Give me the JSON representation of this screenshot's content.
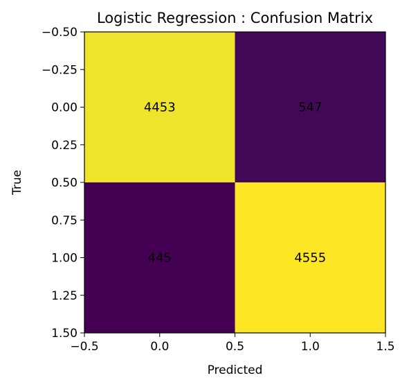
{
  "chart_data": {
    "type": "heatmap",
    "title": "Logistic Regression : Confusion Matrix",
    "xlabel": "Predicted",
    "ylabel": "True",
    "matrix": [
      [
        4453,
        547
      ],
      [
        445,
        4555
      ]
    ],
    "cell_labels": [
      [
        "4453",
        "547"
      ],
      [
        "445",
        "4555"
      ]
    ],
    "xlim": [
      -0.5,
      1.5
    ],
    "ylim": [
      1.5,
      -0.5
    ],
    "xticks": [
      -0.5,
      0.0,
      0.5,
      1.0,
      1.5
    ],
    "xtick_labels": [
      "−0.5",
      "0.0",
      "0.5",
      "1.0",
      "1.5"
    ],
    "yticks": [
      -0.5,
      -0.25,
      0.0,
      0.25,
      0.5,
      0.75,
      1.0,
      1.25,
      1.5
    ],
    "ytick_labels": [
      "−0.50",
      "−0.25",
      "0.00",
      "0.25",
      "0.50",
      "0.75",
      "1.00",
      "1.25",
      "1.50"
    ],
    "colormap": "viridis",
    "grid": false,
    "colors": {
      "low": "#440154",
      "mid": "#21918c",
      "high": "#fde725",
      "text": "#000000"
    }
  }
}
